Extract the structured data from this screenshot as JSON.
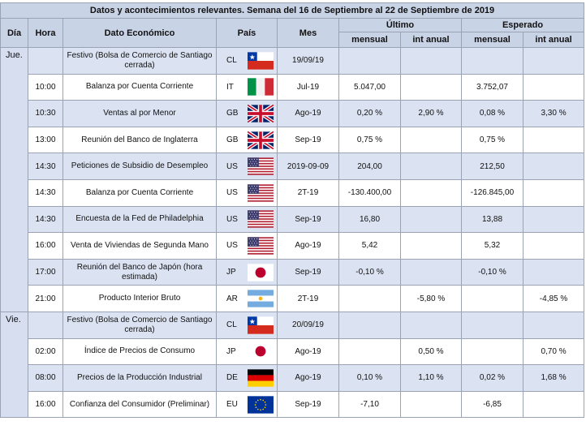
{
  "title": "Datos y acontecimientos relevantes. Semana del 16 de Septiembre al 22 de Septiembre de 2019",
  "headers": {
    "dia": "Día",
    "hora": "Hora",
    "dato": "Dato Económico",
    "pais": "País",
    "mes": "Mes",
    "ultimo": "Último",
    "esperado": "Esperado",
    "mensual": "mensual",
    "int_anual": "int anual"
  },
  "days": [
    {
      "label": "Jue.",
      "rows": [
        {
          "hora": "",
          "dato": "Festivo (Bolsa de Comercio de Santiago cerrada)",
          "pais": "CL",
          "flag": "chile-flag-icon",
          "mes": "19/09/19",
          "u_mensual": "",
          "u_anual": "",
          "e_mensual": "",
          "e_anual": ""
        },
        {
          "hora": "10:00",
          "dato": "Balanza por Cuenta Corriente",
          "pais": "IT",
          "flag": "italy-flag-icon",
          "mes": "Jul-19",
          "u_mensual": "5.047,00",
          "u_anual": "",
          "e_mensual": "3.752,07",
          "e_anual": ""
        },
        {
          "hora": "10:30",
          "dato": "Ventas al por Menor",
          "pais": "GB",
          "flag": "uk-flag-icon",
          "mes": "Ago-19",
          "u_mensual": "0,20 %",
          "u_anual": "2,90 %",
          "e_mensual": "0,08 %",
          "e_anual": "3,30 %"
        },
        {
          "hora": "13:00",
          "dato": "Reunión del Banco de Inglaterra",
          "pais": "GB",
          "flag": "uk-flag-icon",
          "mes": "Sep-19",
          "u_mensual": "0,75 %",
          "u_anual": "",
          "e_mensual": "0,75 %",
          "e_anual": ""
        },
        {
          "hora": "14:30",
          "dato": "Peticiones de Subsidio de Desempleo",
          "pais": "US",
          "flag": "usa-flag-icon",
          "mes": "2019-09-09",
          "u_mensual": "204,00",
          "u_anual": "",
          "e_mensual": "212,50",
          "e_anual": ""
        },
        {
          "hora": "14:30",
          "dato": "Balanza por Cuenta Corriente",
          "pais": "US",
          "flag": "usa-flag-icon",
          "mes": "2T-19",
          "u_mensual": "-130.400,00",
          "u_anual": "",
          "e_mensual": "-126.845,00",
          "e_anual": ""
        },
        {
          "hora": "14:30",
          "dato": "Encuesta de la Fed de Philadelphia",
          "pais": "US",
          "flag": "usa-flag-icon",
          "mes": "Sep-19",
          "u_mensual": "16,80",
          "u_anual": "",
          "e_mensual": "13,88",
          "e_anual": ""
        },
        {
          "hora": "16:00",
          "dato": "Venta de Viviendas de Segunda Mano",
          "pais": "US",
          "flag": "usa-flag-icon",
          "mes": "Ago-19",
          "u_mensual": "5,42",
          "u_anual": "",
          "e_mensual": "5,32",
          "e_anual": ""
        },
        {
          "hora": "17:00",
          "dato": "Reunión del Banco de Japón (hora estimada)",
          "pais": "JP",
          "flag": "japan-flag-icon",
          "mes": "Sep-19",
          "u_mensual": "-0,10 %",
          "u_anual": "",
          "e_mensual": "-0,10 %",
          "e_anual": ""
        },
        {
          "hora": "21:00",
          "dato": "Producto Interior Bruto",
          "pais": "AR",
          "flag": "argentina-flag-icon",
          "mes": "2T-19",
          "u_mensual": "",
          "u_anual": "-5,80 %",
          "e_mensual": "",
          "e_anual": "-4,85 %"
        }
      ]
    },
    {
      "label": "Vie.",
      "rows": [
        {
          "hora": "",
          "dato": "Festivo (Bolsa de Comercio de Santiago cerrada)",
          "pais": "CL",
          "flag": "chile-flag-icon",
          "mes": "20/09/19",
          "u_mensual": "",
          "u_anual": "",
          "e_mensual": "",
          "e_anual": ""
        },
        {
          "hora": "02:00",
          "dato": "Índice de Precios de Consumo",
          "pais": "JP",
          "flag": "japan-flag-icon",
          "mes": "Ago-19",
          "u_mensual": "",
          "u_anual": "0,50 %",
          "e_mensual": "",
          "e_anual": "0,70 %"
        },
        {
          "hora": "08:00",
          "dato": "Precios de la Producción Industrial",
          "pais": "DE",
          "flag": "germany-flag-icon",
          "mes": "Ago-19",
          "u_mensual": "0,10 %",
          "u_anual": "1,10 %",
          "e_mensual": "0,02 %",
          "e_anual": "1,68 %"
        },
        {
          "hora": "16:00",
          "dato": "Confianza del Consumidor (Preliminar)",
          "pais": "EU",
          "flag": "eu-flag-icon",
          "mes": "Sep-19",
          "u_mensual": "-7,10",
          "u_anual": "",
          "e_mensual": "-6,85",
          "e_anual": ""
        }
      ]
    }
  ]
}
